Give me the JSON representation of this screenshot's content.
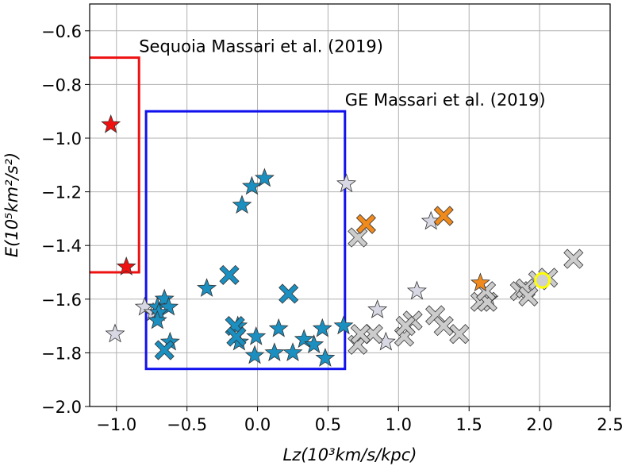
{
  "chart_data": {
    "type": "scatter",
    "xlabel": "Lz(10³km/s/kpc)",
    "ylabel": "E(10⁵km²/s²)",
    "xlim": [
      -1.19,
      2.5
    ],
    "ylim": [
      -2.0,
      -0.5
    ],
    "grid": true,
    "xticks": [
      {
        "value": -1.0,
        "label": "−1.0"
      },
      {
        "value": -0.5,
        "label": "−0.5"
      },
      {
        "value": 0.0,
        "label": "0.0"
      },
      {
        "value": 0.5,
        "label": "0.5"
      },
      {
        "value": 1.0,
        "label": "1.0"
      },
      {
        "value": 1.5,
        "label": "1.5"
      },
      {
        "value": 2.0,
        "label": "2.0"
      },
      {
        "value": 2.5,
        "label": "2.5"
      }
    ],
    "yticks": [
      {
        "value": -0.6,
        "label": "−0.6"
      },
      {
        "value": -0.8,
        "label": "−0.8"
      },
      {
        "value": -1.0,
        "label": "−1.0"
      },
      {
        "value": -1.2,
        "label": "−1.2"
      },
      {
        "value": -1.4,
        "label": "−1.4"
      },
      {
        "value": -1.6,
        "label": "−1.6"
      },
      {
        "value": -1.8,
        "label": "−1.8"
      },
      {
        "value": -2.0,
        "label": "−2.0"
      }
    ],
    "regions": [
      {
        "label": "Sequoia Massari et al. (2019)",
        "color": "#ee1111",
        "x": [
          -1.3,
          -0.84
        ],
        "y": [
          -1.5,
          -0.7
        ]
      },
      {
        "label": "GE Massari et al. (2019)",
        "color": "#1111ee",
        "x": [
          -0.79,
          0.62
        ],
        "y": [
          -1.86,
          -0.9
        ]
      }
    ],
    "series": [
      {
        "marker": "star",
        "color": "#d8d8e4",
        "x": [
          -1.01,
          -0.8,
          -0.74,
          0.63,
          0.85,
          1.13,
          1.23,
          0.91,
          1.64
        ],
        "values": [
          -1.73,
          -1.63,
          -1.65,
          -1.17,
          -1.64,
          -1.57,
          -1.31,
          -1.76,
          -1.6
        ]
      },
      {
        "marker": "x",
        "color": "#cccccc",
        "x": [
          0.71,
          0.71,
          0.82,
          0.73,
          1.04,
          1.1,
          1.05,
          1.26,
          1.32,
          1.43,
          1.58,
          1.63,
          1.62,
          1.86,
          1.9,
          1.92,
          1.99,
          2.06,
          2.24
        ],
        "values": [
          -1.37,
          -1.77,
          -1.73,
          -1.73,
          -1.74,
          -1.68,
          -1.7,
          -1.66,
          -1.7,
          -1.73,
          -1.61,
          -1.61,
          -1.57,
          -1.57,
          -1.56,
          -1.59,
          -1.53,
          -1.52,
          -1.45
        ]
      },
      {
        "marker": "star",
        "color": "#1b8fc0",
        "x": [
          0.05,
          -0.04,
          -0.11,
          -0.36,
          -0.66,
          -0.71,
          -0.63,
          -0.7,
          -0.71,
          -0.62,
          -0.14,
          0.15,
          -0.13,
          -0.01,
          -0.02,
          0.12,
          0.33,
          0.4,
          0.46,
          0.48,
          0.25,
          0.61
        ],
        "values": [
          -1.15,
          -1.18,
          -1.25,
          -1.56,
          -1.6,
          -1.63,
          -1.63,
          -1.65,
          -1.68,
          -1.76,
          -1.7,
          -1.71,
          -1.76,
          -1.74,
          -1.81,
          -1.8,
          -1.75,
          -1.77,
          -1.71,
          -1.82,
          -1.8,
          -1.7
        ]
      },
      {
        "marker": "x",
        "color": "#1b8fc0",
        "x": [
          -0.2,
          0.22,
          -0.16,
          -0.15,
          -0.66
        ],
        "values": [
          -1.51,
          -1.58,
          -1.7,
          -1.74,
          -1.79
        ]
      },
      {
        "marker": "star",
        "color": "#f01010",
        "x": [
          -1.04,
          -0.93
        ],
        "values": [
          -0.95,
          -1.48
        ]
      },
      {
        "marker": "x",
        "color": "#f08a1c",
        "x": [
          0.77,
          1.32
        ],
        "values": [
          -1.32,
          -1.29
        ]
      },
      {
        "marker": "star",
        "color": "#f08a1c",
        "x": [
          1.58
        ],
        "values": [
          -1.54
        ]
      },
      {
        "marker": "circle",
        "color": "#ffff00",
        "x": [
          2.02
        ],
        "values": [
          -1.53
        ]
      }
    ]
  }
}
